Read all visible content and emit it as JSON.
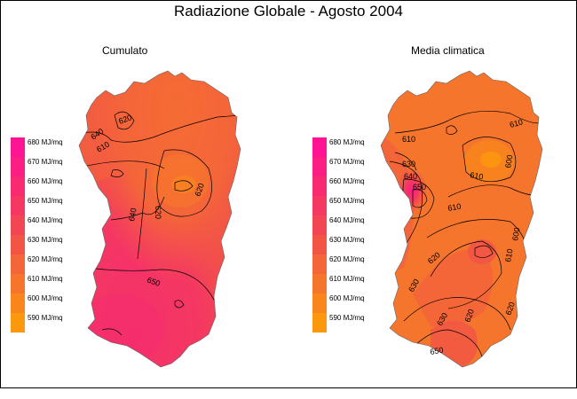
{
  "title": "Radiazione Globale - Agosto 2004",
  "panels": [
    {
      "subtitle": "Cumulato",
      "legend": [
        {
          "label": "680 MJ/mq",
          "color": "#ff1493"
        },
        {
          "label": "670 MJ/mq",
          "color": "#fb1e83"
        },
        {
          "label": "660 MJ/mq",
          "color": "#f72a72"
        },
        {
          "label": "650 MJ/mq",
          "color": "#f43862"
        },
        {
          "label": "640 MJ/mq",
          "color": "#f24655"
        },
        {
          "label": "630 MJ/mq",
          "color": "#f25546"
        },
        {
          "label": "620 MJ/mq",
          "color": "#f4653a"
        },
        {
          "label": "610 MJ/mq",
          "color": "#f6752c"
        },
        {
          "label": "600 MJ/mq",
          "color": "#f9861c"
        },
        {
          "label": "590 MJ/mq",
          "color": "#fc980e"
        }
      ],
      "contour_labels": [
        "620",
        "640",
        "610",
        "620",
        "620",
        "640",
        "650"
      ]
    },
    {
      "subtitle": "Media climatica",
      "legend": [
        {
          "label": "680 MJ/mq",
          "color": "#ff1493"
        },
        {
          "label": "670 MJ/mq",
          "color": "#fb1e83"
        },
        {
          "label": "660 MJ/mq",
          "color": "#f72a72"
        },
        {
          "label": "650 MJ/mq",
          "color": "#f43862"
        },
        {
          "label": "640 MJ/mq",
          "color": "#f24655"
        },
        {
          "label": "630 MJ/mq",
          "color": "#f25546"
        },
        {
          "label": "620 MJ/mq",
          "color": "#f4653a"
        },
        {
          "label": "610 MJ/mq",
          "color": "#f6752c"
        },
        {
          "label": "600 MJ/mq",
          "color": "#f9861c"
        },
        {
          "label": "590 MJ/mq",
          "color": "#fc980e"
        }
      ],
      "contour_labels": [
        "610",
        "630",
        "640",
        "650",
        "610",
        "600",
        "610",
        "600",
        "610",
        "620",
        "630",
        "610",
        "620",
        "620",
        "630",
        "650"
      ]
    }
  ]
}
